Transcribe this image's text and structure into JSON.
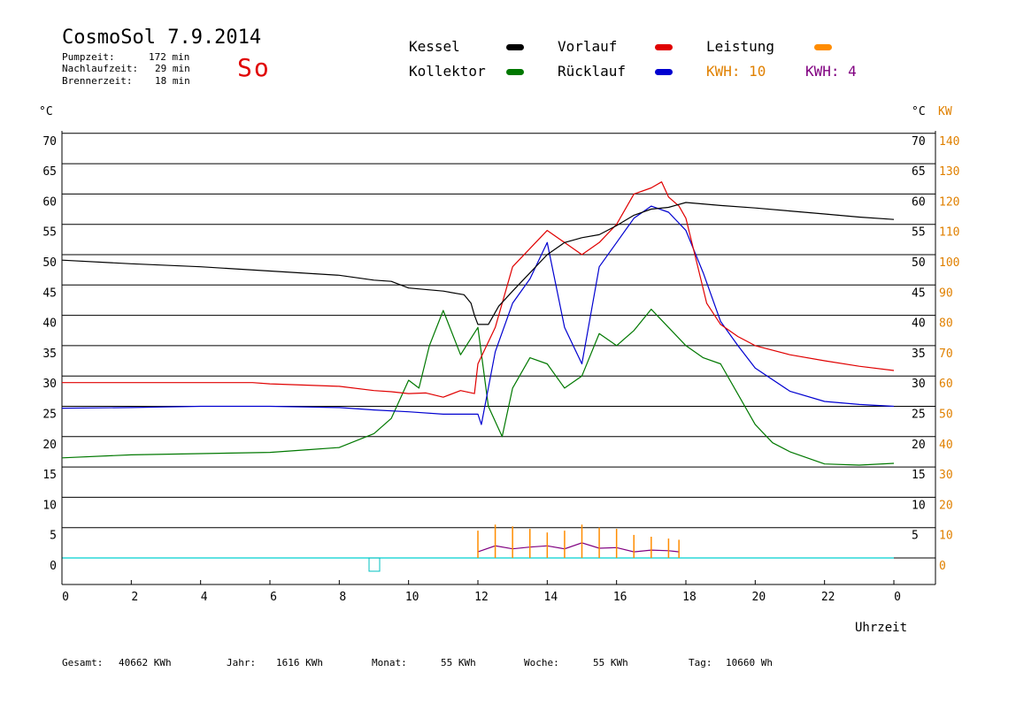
{
  "header": {
    "title": "CosmoSol 7.9.2014",
    "day": "So",
    "pump_label": "Pumpzeit:",
    "pump_value": "172 min",
    "nachlauf_label": "Nachlaufzeit:",
    "nachlauf_value": "29 min",
    "brenner_label": "Brennerzeit:",
    "brenner_value": "18 min"
  },
  "legend": {
    "kessel": "Kessel",
    "kollektor": "Kollektor",
    "vorlauf": "Vorlauf",
    "ruecklauf": "Rücklauf",
    "leistung": "Leistung",
    "kwh1": "KWH: 10",
    "kwh2": "KWH: 4"
  },
  "footer": {
    "gesamt_label": "Gesamt:",
    "gesamt_value": "40662 KWh",
    "jahr_label": "Jahr:",
    "jahr_value": "1616 KWh",
    "monat_label": "Monat:",
    "monat_value": "55 KWh",
    "woche_label": "Woche:",
    "woche_value": "55 KWh",
    "tag_label": "Tag:",
    "tag_value": "10660 Wh"
  },
  "colors": {
    "kessel": "#000000",
    "kollektor": "#007800",
    "vorlauf": "#e00000",
    "ruecklauf": "#0000d0",
    "leistung": "#ff8c00",
    "kwh1": "#e08000",
    "kwh2": "#800080",
    "baseline": "#00d0d0",
    "grid": "#000000"
  },
  "chart_data": {
    "type": "line",
    "xlabel": "Uhrzeit",
    "ylabel_left": "°C",
    "ylabel_right": "°C",
    "ylabel_right2": "KW",
    "xlim": [
      0,
      24
    ],
    "ylim": [
      0,
      70
    ],
    "ylim_right2": [
      0,
      140
    ],
    "grid": true,
    "x_ticks": [
      "0",
      "2",
      "4",
      "6",
      "8",
      "10",
      "12",
      "14",
      "16",
      "18",
      "20",
      "22",
      "0"
    ],
    "y_ticks_left": [
      "0",
      "5",
      "10",
      "15",
      "20",
      "25",
      "30",
      "35",
      "40",
      "45",
      "50",
      "55",
      "60",
      "65",
      "70"
    ],
    "y_ticks_right": [
      "5",
      "10",
      "15",
      "20",
      "25",
      "30",
      "35",
      "40",
      "45",
      "50",
      "55",
      "60",
      "65",
      "70"
    ],
    "y_ticks_right2": [
      "0",
      "10",
      "20",
      "30",
      "40",
      "50",
      "60",
      "70",
      "80",
      "90",
      "100",
      "110",
      "120",
      "130",
      "140"
    ],
    "series": [
      {
        "name": "Kessel",
        "color": "#000000",
        "x": [
          0,
          2,
          4,
          6,
          8,
          9,
          9.5,
          10,
          11,
          11.6,
          11.8,
          11.9,
          12,
          12.3,
          12.6,
          13,
          13.5,
          14,
          14.5,
          15,
          15.5,
          16,
          16.5,
          17,
          17.5,
          18,
          19,
          20,
          21,
          22,
          23,
          24
        ],
        "y": [
          49.1,
          48.5,
          48,
          47.3,
          46.6,
          45.8,
          45.6,
          44.5,
          44,
          43.4,
          42,
          40,
          38.5,
          38.5,
          41.5,
          44,
          47,
          50,
          52,
          52.8,
          53.3,
          54.8,
          56.5,
          57.5,
          57.8,
          58.6,
          58.1,
          57.7,
          57.2,
          56.7,
          56.2,
          55.8
        ]
      },
      {
        "name": "Vorlauf",
        "color": "#e00000",
        "x": [
          0,
          2,
          4,
          5.5,
          6,
          7,
          8,
          9,
          9.5,
          10,
          10.5,
          11,
          11.5,
          11.9,
          12,
          12.5,
          13,
          13.5,
          14,
          14.5,
          15,
          15.5,
          16,
          16.5,
          17,
          17.3,
          17.5,
          17.8,
          18,
          18.3,
          18.6,
          19,
          19.5,
          20,
          21,
          22,
          23,
          24
        ],
        "y": [
          28.9,
          28.9,
          28.9,
          28.9,
          28.7,
          28.5,
          28.3,
          27.6,
          27.4,
          27.1,
          27.2,
          26.5,
          27.6,
          27.1,
          32,
          38,
          48,
          51,
          54,
          52,
          50,
          52,
          55,
          60,
          61,
          62,
          59.5,
          58,
          56,
          49,
          42,
          38.5,
          36.5,
          35,
          33.5,
          32.5,
          31.6,
          30.9
        ]
      },
      {
        "name": "Rücklauf",
        "color": "#0000d0",
        "x": [
          0,
          2,
          4,
          6,
          8,
          9,
          10,
          11,
          12,
          12.1,
          12.5,
          13,
          13.5,
          14,
          14.5,
          15,
          15.5,
          16,
          16.5,
          17,
          17.5,
          18,
          18.5,
          19,
          19.5,
          20,
          21,
          22,
          23,
          24
        ],
        "y": [
          24.7,
          24.8,
          25,
          25,
          24.8,
          24.4,
          24.1,
          23.7,
          23.7,
          22,
          34,
          42,
          46,
          52,
          38,
          32,
          48,
          52,
          56,
          58,
          57,
          54,
          47,
          39,
          35,
          31.3,
          27.5,
          25.8,
          25.3,
          25
        ]
      },
      {
        "name": "Kollektor",
        "color": "#007800",
        "x": [
          0,
          2,
          4,
          6,
          7,
          8,
          9,
          9.5,
          10,
          10.3,
          10.6,
          11,
          11.5,
          12,
          12.3,
          12.7,
          13,
          13.5,
          14,
          14.5,
          15,
          15.5,
          16,
          16.5,
          17,
          17.5,
          18,
          18.5,
          19,
          19.5,
          20,
          20.5,
          21,
          22,
          23,
          24
        ],
        "y": [
          16.5,
          17,
          17.2,
          17.4,
          17.8,
          18.2,
          20.5,
          23,
          29.3,
          28,
          35,
          40.8,
          33.5,
          38,
          25,
          20,
          28,
          33,
          32,
          28,
          30,
          37,
          35,
          37.5,
          41,
          38,
          35,
          33,
          32,
          27,
          22,
          19,
          17.5,
          15.5,
          15.3,
          15.6
        ]
      },
      {
        "name": "Leistung",
        "color": "#ff8c00",
        "x": [
          12,
          12.5,
          13,
          13.5,
          14,
          14.5,
          15,
          15.5,
          16,
          16.5,
          17,
          17.5,
          17.8
        ],
        "y": [
          1,
          2,
          1.5,
          1.8,
          2,
          1.5,
          2.5,
          1.6,
          1.7,
          1,
          1.3,
          1.2,
          1
        ],
        "peaks": [
          4.5,
          5.5,
          5.2,
          4.8,
          4.2,
          4.5,
          5.5,
          5,
          4.8,
          3.8,
          3.5,
          3.2,
          3
        ]
      }
    ]
  }
}
